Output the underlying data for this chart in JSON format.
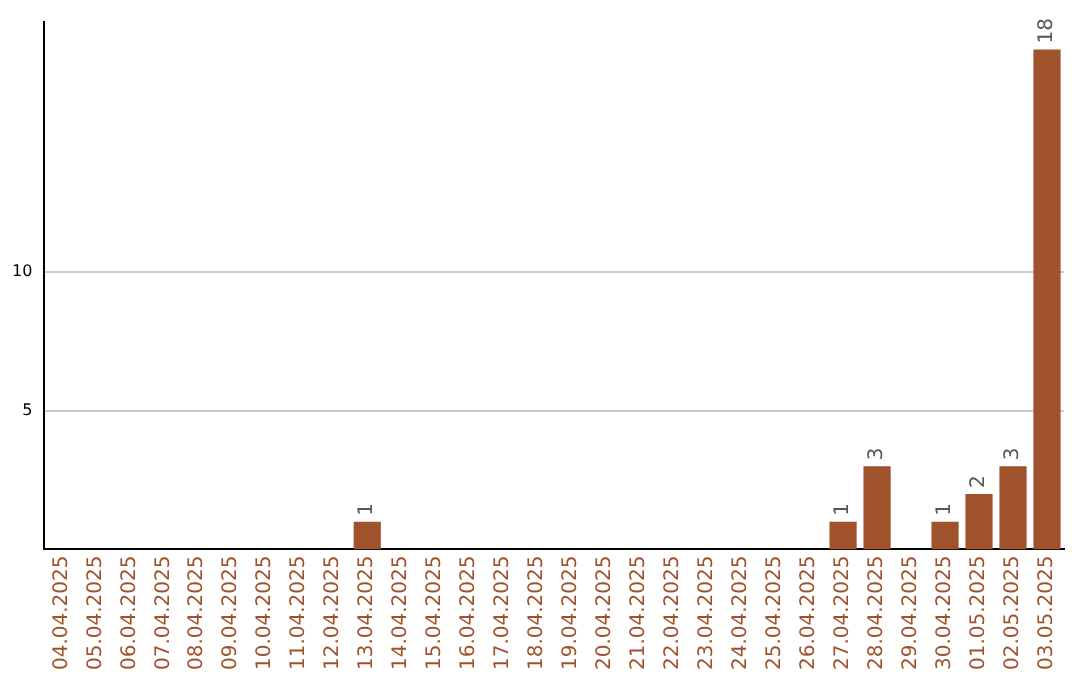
{
  "chart_data": {
    "type": "bar",
    "categories": [
      "04.04.2025",
      "05.04.2025",
      "06.04.2025",
      "07.04.2025",
      "08.04.2025",
      "09.04.2025",
      "10.04.2025",
      "11.04.2025",
      "12.04.2025",
      "13.04.2025",
      "14.04.2025",
      "15.04.2025",
      "16.04.2025",
      "17.04.2025",
      "18.04.2025",
      "19.04.2025",
      "20.04.2025",
      "21.04.2025",
      "22.04.2025",
      "23.04.2025",
      "24.04.2025",
      "25.04.2025",
      "26.04.2025",
      "27.04.2025",
      "28.04.2025",
      "29.04.2025",
      "30.04.2025",
      "01.05.2025",
      "02.05.2025",
      "03.05.2025"
    ],
    "values": [
      0,
      0,
      0,
      0,
      0,
      0,
      0,
      0,
      0,
      1,
      0,
      0,
      0,
      0,
      0,
      0,
      0,
      0,
      0,
      0,
      0,
      0,
      0,
      1,
      3,
      0,
      1,
      2,
      3,
      18
    ],
    "value_labels": [
      null,
      null,
      null,
      null,
      null,
      null,
      null,
      null,
      null,
      "1",
      null,
      null,
      null,
      null,
      null,
      null,
      null,
      null,
      null,
      null,
      null,
      null,
      null,
      "1",
      "3",
      null,
      "1",
      "2",
      "3",
      "18"
    ],
    "color": "#a0522d",
    "ylim": [
      0,
      19
    ],
    "yticks": [
      5,
      10
    ],
    "grid": "y"
  }
}
